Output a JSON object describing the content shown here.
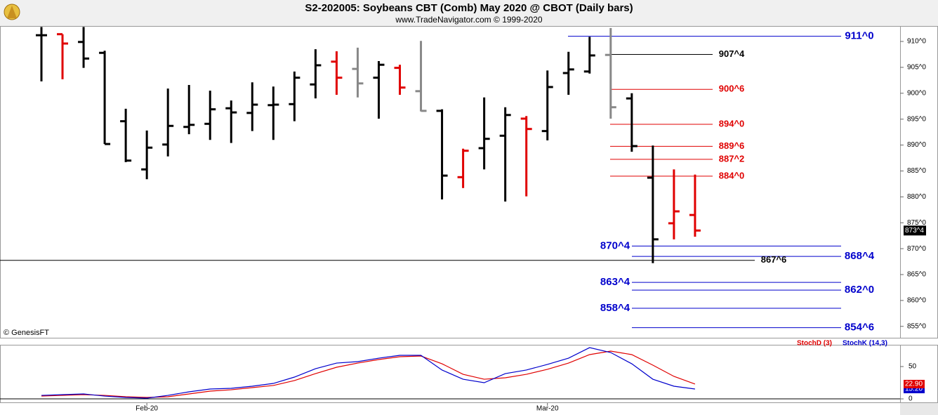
{
  "chart_data": [
    {
      "type": "ohlc",
      "title": "S2-202005:  Soybeans CBT (Comb) May 2020 @ CBOT  (Daily bars)",
      "subtitle": "www.TradeNavigator.com © 1999-2020",
      "credit": "© GenesisFT",
      "ylim": [
        852.8,
        912.85
      ],
      "yticks": [
        {
          "value": 855,
          "label": "855^0"
        },
        {
          "value": 860,
          "label": "860^0"
        },
        {
          "value": 865,
          "label": "865^0"
        },
        {
          "value": 870,
          "label": "870^0"
        },
        {
          "value": 875,
          "label": "875^0"
        },
        {
          "value": 880,
          "label": "880^0"
        },
        {
          "value": 885,
          "label": "885^0"
        },
        {
          "value": 890,
          "label": "890^0"
        },
        {
          "value": 895,
          "label": "895^0"
        },
        {
          "value": 900,
          "label": "900^0"
        },
        {
          "value": 905,
          "label": "905^0"
        },
        {
          "value": 910,
          "label": "910^0"
        }
      ],
      "open": [
        911.2,
        911.4,
        909.9,
        907.8,
        894.6,
        885.3,
        890.1,
        893.5,
        894.1,
        897.1,
        896.2,
        897.7,
        897.9,
        901.7,
        906.1,
        904.7,
        903.0,
        904.9,
        900.4,
        896.6,
        883.8,
        889.4,
        891.8,
        895.1,
        892.7,
        903.9,
        904.2,
        907.4,
        899.0,
        883.7,
        874.9,
        876.5
      ],
      "high": [
        912.8,
        911.4,
        912.8,
        908.2,
        897.0,
        892.8,
        900.9,
        901.6,
        900.5,
        898.6,
        902.1,
        901.3,
        904.2,
        908.5,
        908.1,
        908.8,
        906.2,
        905.5,
        910.1,
        896.9,
        889.3,
        899.2,
        897.3,
        895.6,
        904.4,
        908.0,
        910.9,
        912.6,
        900.0,
        889.9,
        885.3,
        884.3
      ],
      "low": [
        902.3,
        902.7,
        904.9,
        890.2,
        886.7,
        883.4,
        887.8,
        892.1,
        891.0,
        890.4,
        892.7,
        891.0,
        894.6,
        899.0,
        899.7,
        899.2,
        895.1,
        899.7,
        896.5,
        879.5,
        881.7,
        885.3,
        879.1,
        880.1,
        890.9,
        899.7,
        903.8,
        895.1,
        888.7,
        867.2,
        871.8,
        872.3
      ],
      "close": [
        911.2,
        909.6,
        906.7,
        890.2,
        887.0,
        889.5,
        893.7,
        893.9,
        896.9,
        896.3,
        897.8,
        897.8,
        903.0,
        905.4,
        903.0,
        901.9,
        905.5,
        901.1,
        896.6,
        884.1,
        888.9,
        891.2,
        895.8,
        893.1,
        901.2,
        904.6,
        907.3,
        897.3,
        889.8,
        871.8,
        877.2,
        873.5
      ],
      "colors": [
        "#000000",
        "#e00000",
        "#000000",
        "#000000",
        "#000000",
        "#000000",
        "#000000",
        "#000000",
        "#000000",
        "#000000",
        "#000000",
        "#000000",
        "#000000",
        "#000000",
        "#e00000",
        "#888888",
        "#000000",
        "#e00000",
        "#888888",
        "#000000",
        "#e00000",
        "#000000",
        "#000000",
        "#e00000",
        "#000000",
        "#000000",
        "#000000",
        "#888888",
        "#000000",
        "#000000",
        "#e00000",
        "#e00000"
      ],
      "last_price": {
        "value": 873.5,
        "label": "873^4"
      },
      "levels": [
        {
          "value": 911,
          "label": "911^0",
          "color": "#0000cc"
        },
        {
          "value": 907.5,
          "label": "907^4",
          "color": "#000000"
        },
        {
          "value": 900.75,
          "label": "900^6",
          "color": "#e00000"
        },
        {
          "value": 894,
          "label": "894^0",
          "color": "#e00000"
        },
        {
          "value": 889.75,
          "label": "889^6",
          "color": "#e00000"
        },
        {
          "value": 887.25,
          "label": "887^2",
          "color": "#e00000"
        },
        {
          "value": 884,
          "label": "884^0",
          "color": "#e00000"
        },
        {
          "value": 870.5,
          "label": "870^4",
          "color": "#0000cc"
        },
        {
          "value": 868.5,
          "label": "868^4",
          "color": "#0000cc"
        },
        {
          "value": 867.75,
          "label": "867^6",
          "color": "#000000"
        },
        {
          "value": 863.5,
          "label": "863^4",
          "color": "#0000cc"
        },
        {
          "value": 862,
          "label": "862^0",
          "color": "#0000cc"
        },
        {
          "value": 858.5,
          "label": "858^4",
          "color": "#0000cc"
        },
        {
          "value": 854.75,
          "label": "854^6",
          "color": "#0000cc"
        }
      ]
    },
    {
      "type": "line",
      "ylim": [
        -6.5,
        82.6
      ],
      "yticks": [
        0,
        50
      ],
      "xticks": [
        {
          "value": 5,
          "label": "Feb-20"
        },
        {
          "value": 24,
          "label": "Mar-20"
        }
      ],
      "series": [
        {
          "name": "StochD (3)",
          "color": "#e00000",
          "values": [
            4.3,
            5.4,
            6.5,
            5.4,
            3.3,
            2.2,
            3.3,
            7.6,
            12,
            14.1,
            17.4,
            20.7,
            28.3,
            39.1,
            48.9,
            55.4,
            60.9,
            65.2,
            66.3,
            54.3,
            38,
            30.4,
            32.6,
            38,
            45.7,
            55.4,
            68.5,
            73.9,
            68.5,
            52.2,
            34.8,
            22.9
          ],
          "last_label": "22.90"
        },
        {
          "name": "StochK (14,3)",
          "color": "#0000cc",
          "values": [
            5.4,
            6.5,
            7.6,
            4.3,
            2.2,
            1.1,
            5.4,
            10.9,
            15.2,
            16.3,
            19.6,
            23.9,
            33.7,
            46.7,
            55.4,
            57.6,
            63,
            67.4,
            67.4,
            44.6,
            30.4,
            25,
            39.1,
            44.6,
            53.3,
            63,
            79.3,
            71.7,
            54.3,
            30.4,
            19.6,
            15.2
          ],
          "last_label": "15.20"
        }
      ]
    }
  ]
}
